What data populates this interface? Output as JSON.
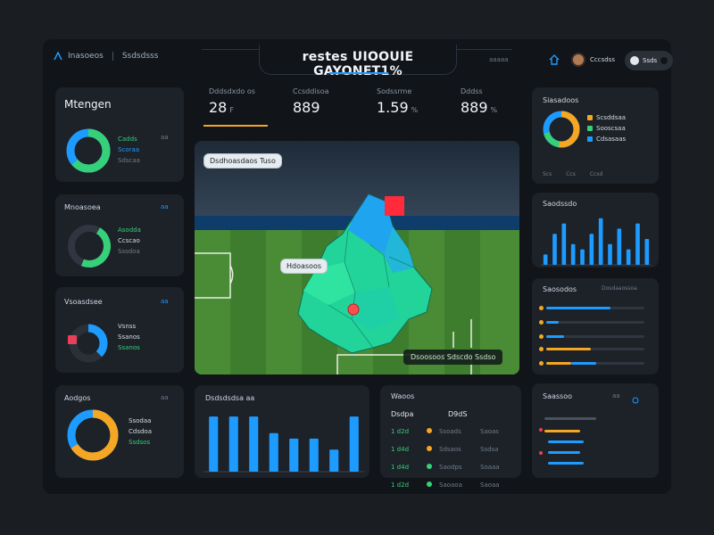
{
  "app": {
    "brand": "Inasoeos",
    "brand_sub": "Ssdsdsss",
    "title": "restes UIOOUIE GAYONET1%",
    "header_mini": "aaaaa",
    "user_label": "Cccsdss",
    "pill_label": "Ssds"
  },
  "kpis": [
    {
      "label": "Dddsdxdo os",
      "value": "28",
      "unit": "F"
    },
    {
      "label": "Ccsddisoa",
      "value": "889",
      "unit": ""
    },
    {
      "label": "Sodssrme",
      "value": "1.59",
      "unit": "%"
    },
    {
      "label": "Dddss",
      "value": "889",
      "unit": "%"
    }
  ],
  "left_cards": [
    {
      "title": "Mtengen",
      "legend": [
        {
          "t": "Cadds",
          "c": "#36d07a"
        },
        {
          "t": "Scoraa",
          "c": "#1e9bff"
        },
        {
          "t": "Sdscaa",
          "c": "#8b97a5"
        }
      ],
      "side": "aa"
    },
    {
      "title": "Mnoasoea",
      "legend": [
        {
          "t": "Asodda",
          "c": "#36d07a"
        },
        {
          "t": "Ccscao",
          "c": "#1e9bff"
        },
        {
          "t": "Sssdoa",
          "c": "#8b97a5"
        }
      ],
      "side": "aa"
    },
    {
      "title": "Vsoasdsee",
      "legend": [
        {
          "t": "Vsnss",
          "c": "#1e9bff"
        },
        {
          "t": "Ssanos",
          "c": "#e8405a"
        },
        {
          "t": "Ssanos",
          "c": "#36d07a"
        }
      ],
      "side": "aa"
    },
    {
      "title": "Aodgos",
      "legend": [
        {
          "t": "Ssodaa",
          "c": "#f5a623"
        },
        {
          "t": "Cdsdoa",
          "c": "#1e9bff"
        },
        {
          "t": "Ssdsos",
          "c": "#36d07a"
        }
      ],
      "side": "aa"
    }
  ],
  "pitch": {
    "tag_top": "Dsdhoasdaos  Tuso",
    "tag_mid": "Hdoasoos",
    "tag_bottom": "Dsoosoos  Sdscdo  Ssdso"
  },
  "right_cards": [
    {
      "title": "Siasadoos",
      "legend": [
        {
          "t": "Scsddsaa",
          "c": "#f5a623"
        },
        {
          "t": "Sooscsaa",
          "c": "#36d07a"
        },
        {
          "t": "Cdsasaas",
          "c": "#1e9bff"
        }
      ],
      "foot": [
        "Scs",
        "Ccs",
        "Ccsd"
      ]
    },
    {
      "title": "Saodssdo"
    },
    {
      "title": "Saosodos",
      "side": "Dosdaaossoa"
    },
    {
      "title": "Saassoo",
      "side": "aa"
    }
  ],
  "bottom_chart": {
    "title": "Dsdsdsdsa aa"
  },
  "table": {
    "title": "Waoos",
    "headers": [
      "Dsdpa",
      "D9dS"
    ],
    "rows": [
      [
        "1 d2d",
        "Ssoads",
        "Saoas"
      ],
      [
        "1 d4d",
        "Sdsaos",
        "Ssdsa"
      ],
      [
        "1 d4d",
        "Saodps",
        "Soaaa"
      ],
      [
        "1 d2d",
        "Saoaoa",
        "Saoaa"
      ]
    ]
  },
  "chart_data": [
    {
      "type": "bar",
      "title": "Saodssdo",
      "categories": [
        "1",
        "2",
        "3",
        "4",
        "5",
        "6",
        "7",
        "8",
        "9",
        "10",
        "11",
        "12"
      ],
      "values": [
        2,
        6,
        8,
        4,
        3,
        6,
        9,
        4,
        7,
        3,
        8,
        5
      ],
      "ylim": [
        0,
        10
      ]
    },
    {
      "type": "bar",
      "title": "Dsdsdsdsa aa",
      "categories": [
        "1",
        "2",
        "3",
        "4",
        "5",
        "6",
        "7",
        "8"
      ],
      "values": [
        10,
        10,
        10,
        7,
        6,
        6,
        4,
        10
      ],
      "ylim": [
        0,
        11
      ]
    }
  ],
  "colors": {
    "accent": "#1e9bff",
    "green": "#36d07a",
    "orange": "#f5a623",
    "red": "#e8405a",
    "bg": "#111418",
    "card": "#1d2128"
  }
}
